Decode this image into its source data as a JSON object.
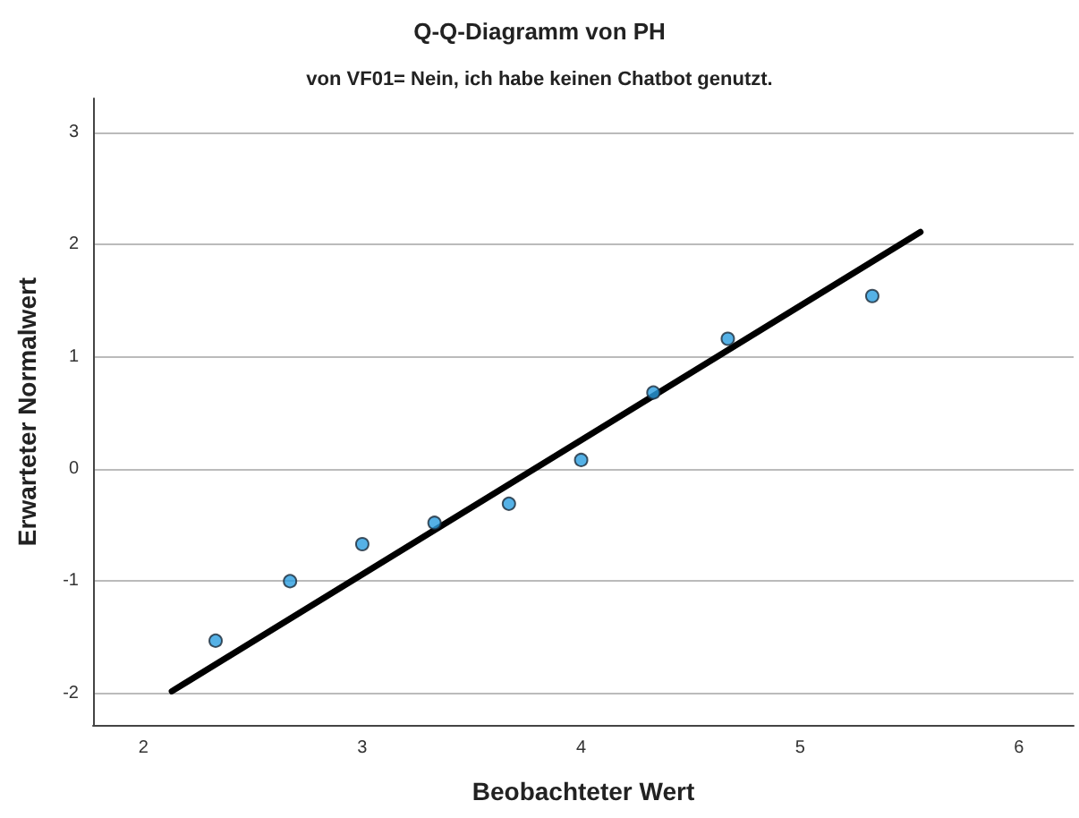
{
  "chart_data": {
    "type": "scatter",
    "title": "Q-Q-Diagramm von PH",
    "subtitle": "von VF01= Nein, ich habe keinen Chatbot genutzt.",
    "xlabel": "Beobachteter Wert",
    "ylabel": "Erwarteter Normalwert",
    "xlim": [
      1.77,
      6.25
    ],
    "xticks": [
      2,
      3,
      4,
      5,
      6
    ],
    "ylim": [
      -2.28,
      3.3
    ],
    "yticks": [
      -2,
      -1,
      0,
      1,
      2,
      3
    ],
    "grid": "y",
    "marker": "circle",
    "series": [
      {
        "color": "#2a9de0",
        "x": [
          2.33,
          2.67,
          3.0,
          3.33,
          3.67,
          4.0,
          4.33,
          4.67,
          5.33
        ],
        "values": [
          -1.53,
          -1.0,
          -0.67,
          -0.48,
          -0.31,
          0.08,
          0.68,
          1.16,
          1.54
        ]
      },
      {
        "type": "line",
        "color": "#000000",
        "x": [
          2.13,
          5.55
        ],
        "values": [
          -1.98,
          2.11
        ],
        "line_style": "solid",
        "marker": "none"
      }
    ]
  }
}
